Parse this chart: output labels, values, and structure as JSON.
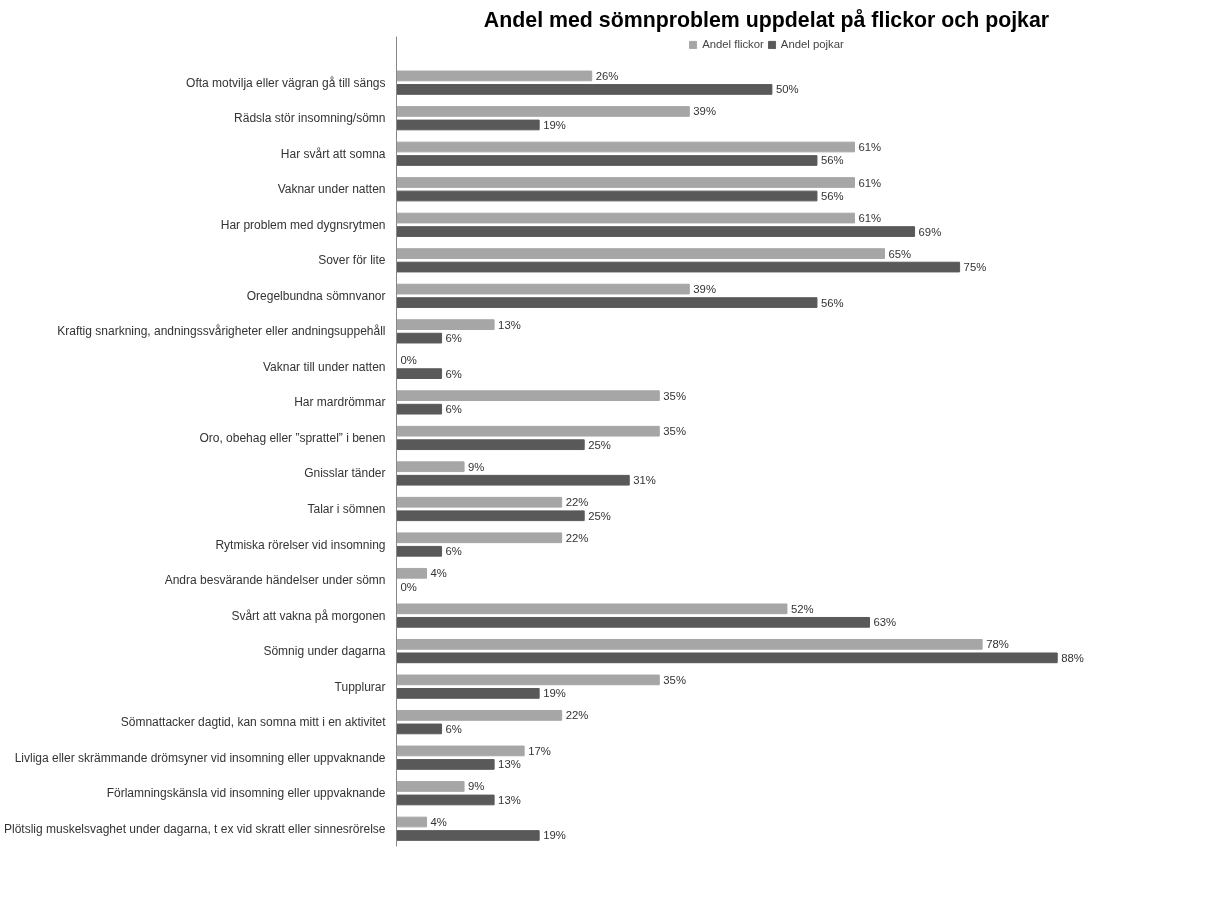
{
  "chart_data": {
    "type": "bar",
    "orientation": "horizontal",
    "title": "Andel med sömnproblem uppdelat på flickor och pojkar",
    "legend": "top",
    "categories": [
      "Ofta motvilja eller vägran gå till sängs",
      "Rädsla stör insomning/sömn",
      "Har svårt att somna",
      "Vaknar under natten",
      "Har problem med dygnsrytmen",
      "Sover för lite",
      "Oregelbundna sömnvanor",
      "Kraftig snarkning, andningssvårigheter eller andningsuppehåll",
      "Vaknar till under natten",
      "Har mardrömmar",
      "Oro, obehag eller ”sprattel” i benen",
      "Gnisslar tänder",
      "Talar i sömnen",
      "Rytmiska rörelser vid insomning",
      "Andra besvärande händelser under sömn",
      "Svårt att vakna på morgonen",
      "Sömnig under dagarna",
      "Tupplurar",
      "Sömnattacker dagtid, kan somna mitt i en aktivitet",
      "Livliga eller skrämmande drömsyner vid insomning eller uppvaknande",
      "Förlamningskänsla vid insomning eller uppvaknande",
      "Plötslig muskelsvaghet under dagarna, t ex vid skratt eller sinnesrörelse"
    ],
    "series": [
      {
        "name": "Andel flickor",
        "color": "#a6a6a6",
        "values": [
          26,
          39,
          61,
          61,
          61,
          65,
          39,
          13,
          0,
          35,
          35,
          9,
          22,
          22,
          4,
          52,
          78,
          35,
          22,
          17,
          9,
          4
        ],
        "value_labels": [
          "26%",
          "39%",
          "61%",
          "61%",
          "61%",
          "65%",
          "39%",
          "13%",
          "0%",
          "35%",
          "35%",
          "9%",
          "22%",
          "22%",
          "4%",
          "52%",
          "78%",
          "35%",
          "22%",
          "17%",
          "9%",
          "4%"
        ]
      },
      {
        "name": "Andel pojkar",
        "color": "#595959",
        "values": [
          50,
          19,
          56,
          56,
          69,
          75,
          56,
          6,
          6,
          6,
          25,
          31,
          25,
          6,
          0,
          63,
          88,
          19,
          6,
          13,
          13,
          19
        ],
        "value_labels": [
          "50%",
          "19%",
          "56%",
          "56%",
          "69%",
          "75%",
          "56%",
          "6%",
          "6%",
          "6%",
          "25%",
          "31%",
          "25%",
          "6%",
          "0%",
          "63%",
          "88%",
          "19%",
          "6%",
          "13%",
          "13%",
          "19%"
        ]
      }
    ],
    "grid": false
  }
}
